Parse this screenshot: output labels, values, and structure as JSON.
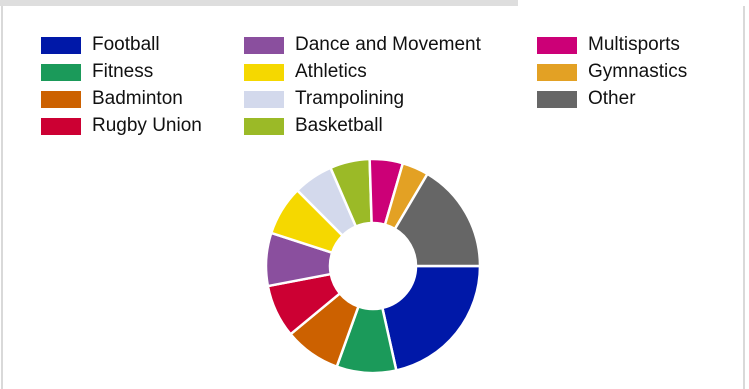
{
  "chart_data": {
    "type": "pie",
    "title": "",
    "legend_placement": "top",
    "series": [
      {
        "name": "Football",
        "value": 21.5,
        "color": "#0018a8"
      },
      {
        "name": "Fitness",
        "value": 9.0,
        "color": "#1b9a5a"
      },
      {
        "name": "Badminton",
        "value": 8.5,
        "color": "#cc6100"
      },
      {
        "name": "Rugby Union",
        "value": 8.0,
        "color": "#cc0033"
      },
      {
        "name": "Dance and Movement",
        "value": 8.0,
        "color": "#8a4f9e"
      },
      {
        "name": "Athletics",
        "value": 7.5,
        "color": "#f5d800"
      },
      {
        "name": "Trampolining",
        "value": 6.0,
        "color": "#d3d9ec"
      },
      {
        "name": "Basketball",
        "value": 6.0,
        "color": "#9bba27"
      },
      {
        "name": "Multisports",
        "value": 5.0,
        "color": "#cc0077"
      },
      {
        "name": "Gymnastics",
        "value": 4.0,
        "color": "#e3a124"
      },
      {
        "name": "Other",
        "value": 16.5,
        "color": "#666666"
      }
    ],
    "legend_order": [
      "Football",
      "Fitness",
      "Badminton",
      "Rugby Union",
      "Dance and Movement",
      "Athletics",
      "Trampolining",
      "Basketball",
      "Multisports",
      "Gymnastics",
      "Other"
    ]
  }
}
